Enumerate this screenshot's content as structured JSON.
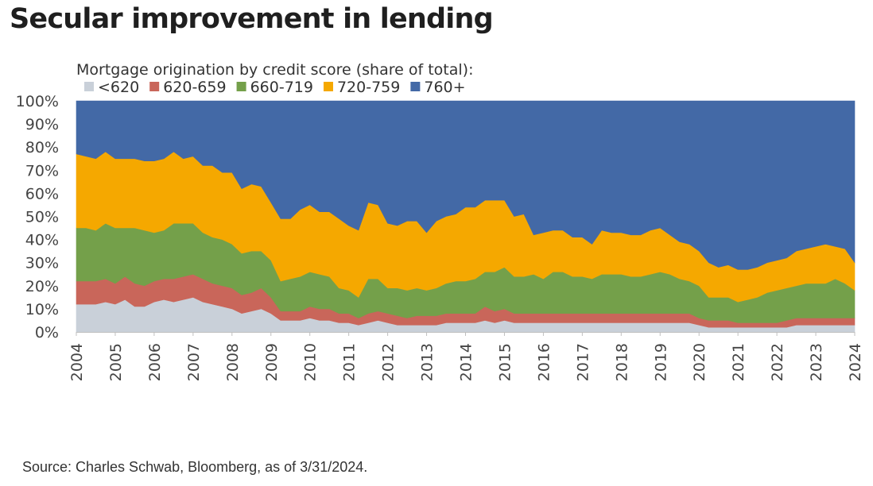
{
  "page": {
    "title": "Secular improvement in lending",
    "source": "Source: Charles Schwab, Bloomberg, as of 3/31/2024."
  },
  "chart_data": {
    "type": "area",
    "stacked": true,
    "title": "Mortgage origination by credit score (share of total):",
    "xlabel": "",
    "ylabel": "",
    "ylim": [
      0,
      100
    ],
    "y_tick_labels": [
      "0%",
      "10%",
      "20%",
      "30%",
      "40%",
      "50%",
      "60%",
      "70%",
      "80%",
      "90%",
      "100%"
    ],
    "x_tick_labels": [
      "2004",
      "2005",
      "2006",
      "2007",
      "2008",
      "2009",
      "2010",
      "2011",
      "2012",
      "2013",
      "2014",
      "2015",
      "2016",
      "2017",
      "2018",
      "2019",
      "2020",
      "2021",
      "2022",
      "2023",
      "2024"
    ],
    "grid": false,
    "legend": "top-left",
    "x": [
      2004.0,
      2004.25,
      2004.5,
      2004.75,
      2005.0,
      2005.25,
      2005.5,
      2005.75,
      2006.0,
      2006.25,
      2006.5,
      2006.75,
      2007.0,
      2007.25,
      2007.5,
      2007.75,
      2008.0,
      2008.25,
      2008.5,
      2008.75,
      2009.0,
      2009.25,
      2009.5,
      2009.75,
      2010.0,
      2010.25,
      2010.5,
      2010.75,
      2011.0,
      2011.25,
      2011.5,
      2011.75,
      2012.0,
      2012.25,
      2012.5,
      2012.75,
      2013.0,
      2013.25,
      2013.5,
      2013.75,
      2014.0,
      2014.25,
      2014.5,
      2014.75,
      2015.0,
      2015.25,
      2015.5,
      2015.75,
      2016.0,
      2016.25,
      2016.5,
      2016.75,
      2017.0,
      2017.25,
      2017.5,
      2017.75,
      2018.0,
      2018.25,
      2018.5,
      2018.75,
      2019.0,
      2019.25,
      2019.5,
      2019.75,
      2020.0,
      2020.25,
      2020.5,
      2020.75,
      2021.0,
      2021.25,
      2021.5,
      2021.75,
      2022.0,
      2022.25,
      2022.5,
      2022.75,
      2023.0,
      2023.25,
      2023.5,
      2023.75,
      2024.0
    ],
    "series": [
      {
        "name": "<620",
        "color": "#c9d0d9",
        "values": [
          12,
          12,
          12,
          13,
          12,
          14,
          11,
          11,
          13,
          14,
          13,
          14,
          15,
          13,
          12,
          11,
          10,
          8,
          9,
          10,
          8,
          5,
          5,
          5,
          6,
          5,
          5,
          4,
          4,
          3,
          4,
          5,
          4,
          3,
          3,
          3,
          3,
          3,
          4,
          4,
          4,
          4,
          5,
          4,
          5,
          4,
          4,
          4,
          4,
          4,
          4,
          4,
          4,
          4,
          4,
          4,
          4,
          4,
          4,
          4,
          4,
          4,
          4,
          4,
          3,
          2,
          2,
          2,
          2,
          2,
          2,
          2,
          2,
          2,
          3,
          3,
          3,
          3,
          3,
          3,
          3
        ]
      },
      {
        "name": "620-659",
        "color": "#c9665a",
        "values": [
          10,
          10,
          10,
          10,
          9,
          10,
          10,
          9,
          9,
          9,
          10,
          10,
          10,
          10,
          9,
          9,
          9,
          8,
          8,
          9,
          7,
          4,
          4,
          4,
          5,
          5,
          5,
          4,
          4,
          3,
          4,
          4,
          4,
          4,
          3,
          4,
          4,
          4,
          4,
          4,
          4,
          4,
          6,
          5,
          5,
          4,
          4,
          4,
          4,
          4,
          4,
          4,
          4,
          4,
          4,
          4,
          4,
          4,
          4,
          4,
          4,
          4,
          4,
          4,
          3,
          3,
          3,
          3,
          2,
          2,
          2,
          2,
          2,
          3,
          3,
          3,
          3,
          3,
          3,
          3,
          3
        ]
      },
      {
        "name": "660-719",
        "color": "#74a04a",
        "values": [
          23,
          23,
          22,
          24,
          24,
          21,
          24,
          24,
          21,
          21,
          24,
          23,
          22,
          20,
          20,
          20,
          19,
          18,
          18,
          16,
          16,
          13,
          14,
          15,
          15,
          15,
          14,
          11,
          10,
          9,
          15,
          14,
          11,
          12,
          12,
          12,
          11,
          12,
          13,
          14,
          14,
          15,
          15,
          17,
          18,
          16,
          16,
          17,
          15,
          18,
          18,
          16,
          16,
          15,
          17,
          17,
          17,
          16,
          16,
          17,
          18,
          17,
          15,
          14,
          14,
          10,
          10,
          10,
          9,
          10,
          11,
          13,
          14,
          14,
          14,
          15,
          15,
          15,
          17,
          15,
          12
        ]
      },
      {
        "name": "720-759",
        "color": "#f5a800",
        "values": [
          32,
          31,
          31,
          31,
          30,
          30,
          30,
          30,
          31,
          31,
          31,
          28,
          29,
          29,
          31,
          29,
          31,
          28,
          29,
          28,
          25,
          27,
          26,
          29,
          29,
          27,
          28,
          30,
          28,
          29,
          33,
          32,
          28,
          27,
          30,
          29,
          25,
          29,
          29,
          29,
          32,
          31,
          31,
          31,
          29,
          26,
          27,
          17,
          20,
          18,
          18,
          17,
          17,
          15,
          19,
          18,
          18,
          18,
          18,
          19,
          19,
          17,
          16,
          16,
          15,
          15,
          13,
          14,
          14,
          13,
          13,
          13,
          13,
          13,
          15,
          15,
          16,
          17,
          14,
          15,
          12
        ]
      },
      {
        "name": "760+",
        "color": "#4369a6",
        "values": [
          23,
          24,
          25,
          22,
          25,
          25,
          25,
          26,
          26,
          25,
          22,
          25,
          24,
          28,
          28,
          31,
          31,
          38,
          36,
          37,
          44,
          51,
          51,
          47,
          45,
          48,
          48,
          51,
          54,
          56,
          44,
          45,
          53,
          54,
          52,
          52,
          57,
          52,
          50,
          49,
          46,
          46,
          43,
          43,
          43,
          50,
          49,
          58,
          57,
          56,
          56,
          59,
          59,
          62,
          56,
          57,
          57,
          59,
          58,
          56,
          55,
          58,
          61,
          62,
          65,
          70,
          72,
          71,
          73,
          73,
          72,
          70,
          69,
          68,
          65,
          64,
          63,
          62,
          63,
          64,
          70
        ]
      }
    ]
  }
}
